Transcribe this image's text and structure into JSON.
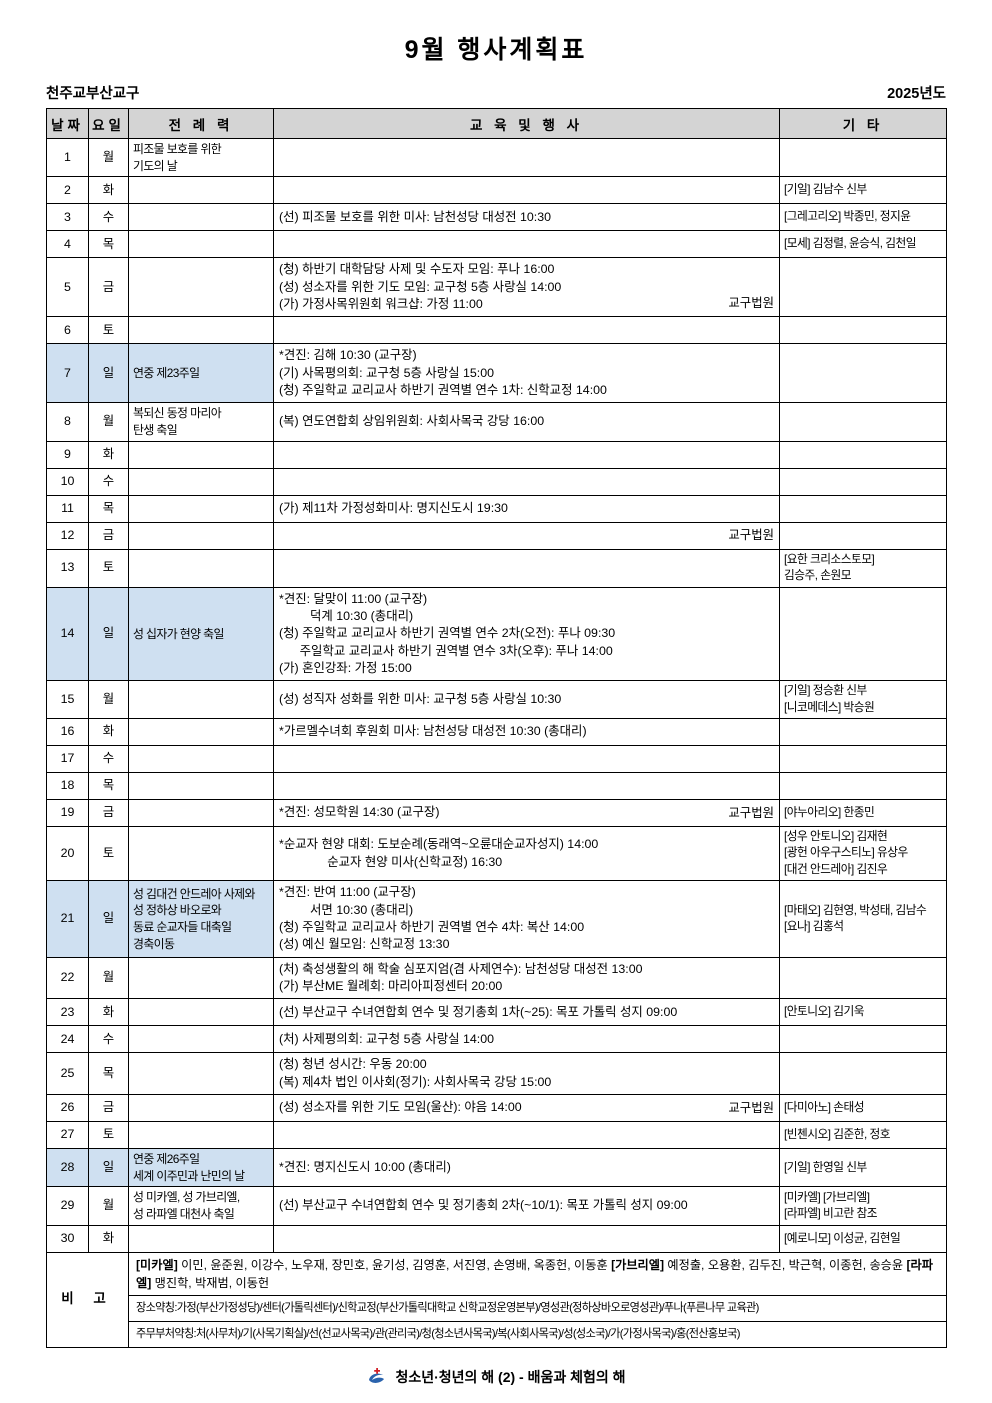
{
  "title": "9월 행사계획표",
  "org": "천주교부산교구",
  "year": "2025년도",
  "header": {
    "date": "날짜",
    "day": "요일",
    "liturgy": "전 례 력",
    "events": "교 육   및   행 사",
    "etc": "기 타"
  },
  "rows": [
    {
      "date": "1",
      "day": "월",
      "sunday": false,
      "liturgy": [
        "피조물 보호를 위한",
        "기도의 날"
      ],
      "events": [],
      "events_right": "",
      "etc": []
    },
    {
      "date": "2",
      "day": "화",
      "sunday": false,
      "liturgy": [],
      "events": [],
      "events_right": "",
      "etc": [
        "[기일] 김남수 신부"
      ]
    },
    {
      "date": "3",
      "day": "수",
      "sunday": false,
      "liturgy": [],
      "events": [
        "(선) 피조물 보호를 위한 미사: 남천성당 대성전 10:30"
      ],
      "events_right": "",
      "etc": [
        "[그레고리오] 박종민, 정지윤"
      ]
    },
    {
      "date": "4",
      "day": "목",
      "sunday": false,
      "liturgy": [],
      "events": [],
      "events_right": "",
      "etc": [
        "[모세] 김정렬, 윤승식, 김천일"
      ]
    },
    {
      "date": "5",
      "day": "금",
      "sunday": false,
      "liturgy": [],
      "events": [
        "(청) 하반기 대학담당 사제 및 수도자 모임: 푸나 16:00",
        "(성) 성소자를 위한 기도 모임: 교구청 5층 사랑실 14:00",
        "(가) 가정사목위원회 워크샵: 가정 11:00"
      ],
      "events_right": "교구법원",
      "etc": []
    },
    {
      "date": "6",
      "day": "토",
      "sunday": false,
      "liturgy": [],
      "events": [],
      "events_right": "",
      "etc": []
    },
    {
      "date": "7",
      "day": "일",
      "sunday": true,
      "liturgy": [
        "연중 제23주일"
      ],
      "events": [
        "*견진: 김해 10:30 (교구장)",
        "(기) 사목평의회: 교구청 5층 사랑실 15:00",
        "(청) 주일학교 교리교사 하반기 권역별 연수 1차: 신학교정 14:00"
      ],
      "events_right": "",
      "etc": []
    },
    {
      "date": "8",
      "day": "월",
      "sunday": false,
      "liturgy": [
        "복되신 동정 마리아",
        "탄생 축일"
      ],
      "events": [
        "(복) 연도연합회 상임위원회: 사회사목국 강당 16:00"
      ],
      "events_right": "",
      "etc": []
    },
    {
      "date": "9",
      "day": "화",
      "sunday": false,
      "liturgy": [],
      "events": [],
      "events_right": "",
      "etc": []
    },
    {
      "date": "10",
      "day": "수",
      "sunday": false,
      "liturgy": [],
      "events": [],
      "events_right": "",
      "etc": []
    },
    {
      "date": "11",
      "day": "목",
      "sunday": false,
      "liturgy": [],
      "events": [
        "(가) 제11차 가정성화미사: 명지신도시 19:30"
      ],
      "events_right": "",
      "etc": []
    },
    {
      "date": "12",
      "day": "금",
      "sunday": false,
      "liturgy": [],
      "events": [],
      "events_right": "교구법원",
      "etc": []
    },
    {
      "date": "13",
      "day": "토",
      "sunday": false,
      "liturgy": [],
      "events": [],
      "events_right": "",
      "etc": [
        "[요한 크리소스토모]",
        "김승주, 손원모"
      ]
    },
    {
      "date": "14",
      "day": "일",
      "sunday": true,
      "liturgy": [
        "성 십자가 현양 축일"
      ],
      "events": [
        "*견진: 달맞이 11:00 (교구장)",
        "         덕계 10:30 (총대리)",
        "(청) 주일학교 교리교사 하반기 권역별 연수 2차(오전): 푸나 09:30",
        "      주일학교 교리교사 하반기 권역별 연수 3차(오후): 푸나 14:00",
        "(가) 혼인강좌: 가정 15:00"
      ],
      "events_right": "",
      "etc": []
    },
    {
      "date": "15",
      "day": "월",
      "sunday": false,
      "liturgy": [],
      "events": [
        "(성) 성직자 성화를 위한 미사: 교구청 5층 사랑실 10:30"
      ],
      "events_right": "",
      "etc": [
        "[기일] 정승환 신부",
        "[니코메데스] 박승원"
      ]
    },
    {
      "date": "16",
      "day": "화",
      "sunday": false,
      "liturgy": [],
      "events": [
        "*가르멜수녀회 후원회 미사: 남천성당 대성전 10:30 (총대리)"
      ],
      "events_right": "",
      "etc": []
    },
    {
      "date": "17",
      "day": "수",
      "sunday": false,
      "liturgy": [],
      "events": [],
      "events_right": "",
      "etc": []
    },
    {
      "date": "18",
      "day": "목",
      "sunday": false,
      "liturgy": [],
      "events": [],
      "events_right": "",
      "etc": []
    },
    {
      "date": "19",
      "day": "금",
      "sunday": false,
      "liturgy": [],
      "events": [
        "*견진: 성모학원 14:30 (교구장)"
      ],
      "events_right": "교구법원",
      "etc": [
        "[야누아리오] 한종민"
      ]
    },
    {
      "date": "20",
      "day": "토",
      "sunday": false,
      "liturgy": [],
      "events": [
        "*순교자 현양 대회: 도보순례(동래역~오륜대순교자성지) 14:00",
        "              순교자 현양 미사(신학교정) 16:30"
      ],
      "events_right": "",
      "etc": [
        "[성우 안토니오] 김재현",
        "[광헌 아우구스티노] 유상우",
        "[대건 안드레아] 김진우"
      ]
    },
    {
      "date": "21",
      "day": "일",
      "sunday": true,
      "liturgy": [
        "성 김대건 안드레아 사제와",
        "성 정하상 바오로와",
        "동료 순교자들 대축일",
        "경축이동"
      ],
      "events": [
        "*견진: 반여 11:00 (교구장)",
        "         서면 10:30 (총대리)",
        "(청) 주일학교 교리교사 하반기 권역별 연수 4차: 복산 14:00",
        "(성) 예신 월모임: 신학교정 13:30"
      ],
      "events_right": "",
      "etc": [
        "[마태오] 김현영, 박성태, 김남수",
        "[요나] 김홍석"
      ]
    },
    {
      "date": "22",
      "day": "월",
      "sunday": false,
      "liturgy": [],
      "events": [
        "(처) 축성생활의 해 학술 심포지엄(겸 사제연수): 남천성당 대성전 13:00",
        "(가) 부산ME 월례회: 마리아피정센터 20:00"
      ],
      "events_right": "",
      "etc": []
    },
    {
      "date": "23",
      "day": "화",
      "sunday": false,
      "liturgy": [],
      "events": [
        "(선) 부산교구 수녀연합회 연수 및 정기총회 1차(~25): 목포 가톨릭 성지 09:00"
      ],
      "events_right": "",
      "etc": [
        "[안토니오] 김기욱"
      ]
    },
    {
      "date": "24",
      "day": "수",
      "sunday": false,
      "liturgy": [],
      "events": [
        "(처) 사제평의회: 교구청 5층 사랑실 14:00"
      ],
      "events_right": "",
      "etc": []
    },
    {
      "date": "25",
      "day": "목",
      "sunday": false,
      "liturgy": [],
      "events": [
        "(청) 청년 성시간: 우동 20:00",
        "(복) 제4차 법인 이사회(정기): 사회사목국 강당 15:00"
      ],
      "events_right": "",
      "etc": []
    },
    {
      "date": "26",
      "day": "금",
      "sunday": false,
      "liturgy": [],
      "events": [
        "(성) 성소자를 위한 기도 모임(울산): 야음 14:00"
      ],
      "events_right": "교구법원",
      "etc": [
        "[다미아노] 손태성"
      ]
    },
    {
      "date": "27",
      "day": "토",
      "sunday": false,
      "liturgy": [],
      "events": [],
      "events_right": "",
      "etc": [
        "[빈첸시오] 김준한, 정호"
      ]
    },
    {
      "date": "28",
      "day": "일",
      "sunday": true,
      "liturgy": [
        "연중 제26주일",
        "세계 이주민과 난민의 날"
      ],
      "events": [
        "*견진: 명지신도시 10:00 (총대리)"
      ],
      "events_right": "",
      "etc": [
        "[기일] 한영일 신부"
      ]
    },
    {
      "date": "29",
      "day": "월",
      "sunday": false,
      "liturgy": [
        "성 미카엘, 성 가브리엘,",
        "성 라파엘 대천사 축일"
      ],
      "events": [
        "(선) 부산교구 수녀연합회 연수 및 정기총회 2차(~10/1): 목포 가톨릭 성지 09:00"
      ],
      "events_right": "",
      "etc": [
        "[미카엘] [가브리엘]",
        "[라파엘] 비고란 참조"
      ]
    },
    {
      "date": "30",
      "day": "화",
      "sunday": false,
      "liturgy": [],
      "events": [],
      "events_right": "",
      "etc": [
        "[예로니모] 이성균, 김현일"
      ]
    }
  ],
  "remarks": {
    "label": "비  고",
    "name_groups": [
      {
        "label": "[미카엘]",
        "names": "이민, 윤준원, 이강수, 노우재, 장민호, 윤기성, 김영훈, 서진영, 손영배, 옥종헌, 이동훈"
      },
      {
        "label": "[가브리엘]",
        "names": "예정출, 오용환, 김두진, 박근혁, 이종헌, 송승윤"
      },
      {
        "label": "[라파엘]",
        "names": "맹진학, 박재범, 이동헌"
      }
    ],
    "place_abbr": "장소약칭:가정(부산가정성당)/센터(가톨릭센터)/신학교정(부산가톨릭대학교 신학교정운영본부)/영성관(정하상바오로영성관)/푸나(푸른나무 교육관)",
    "dept_abbr": "주무부처약칭:처(사무처)/기(사목기획실)/선(선교사목국)/관(관리국)/청(청소년사목국)/복(사회사목국)/성(성소국)/가(가정사목국)/홍(전산홍보국)"
  },
  "footer": {
    "slogan": "청소년·청년의 해 (2) - 배움과 체험의 해"
  },
  "colors": {
    "header_bg": "#d4d4d4",
    "sunday_bg": "#cfe0f1",
    "logo_blue": "#2b63ad",
    "logo_red": "#d22027"
  }
}
